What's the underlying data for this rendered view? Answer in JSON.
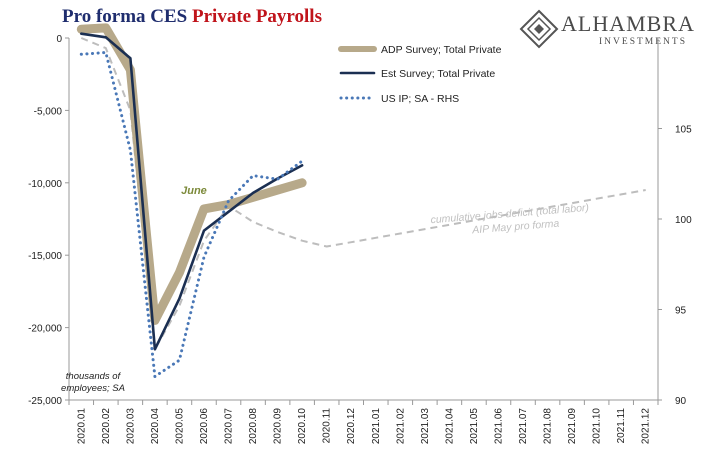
{
  "header": {
    "title_part1": "Pro forma CES ",
    "title_part2": "Private Payrolls"
  },
  "logo": {
    "name": "ALHAMBRA",
    "sub": "INVESTMENTS"
  },
  "chart_data": {
    "type": "line",
    "categories": [
      "2020.01",
      "2020.02",
      "2020.03",
      "2020.04",
      "2020.05",
      "2020.06",
      "2020.07",
      "2020.08",
      "2020.09",
      "2020.10",
      "2020.11",
      "2020.12",
      "2021.01",
      "2021.02",
      "2021.03",
      "2021.04",
      "2021.05",
      "2021.06",
      "2021.07",
      "2021.08",
      "2021.09",
      "2021.10",
      "2021.11",
      "2021.12"
    ],
    "ylim_left": [
      -25000,
      0
    ],
    "yticks_left": [
      0,
      -5000,
      -10000,
      -15000,
      -20000,
      -25000
    ],
    "ytick_labels_left": [
      "0",
      "-5,000",
      "-10,000",
      "-15,000",
      "-20,000",
      "-25,000"
    ],
    "ylim_right": [
      90,
      110
    ],
    "yticks_right": [
      90,
      95,
      100,
      105
    ],
    "ytick_labels_right": [
      "90",
      "95",
      "100",
      "105"
    ],
    "ylabel_left": "thousands of employees; SA",
    "legend_position": "top-right",
    "series": [
      {
        "name": "ADP Survey; Total Private",
        "axis": "left",
        "color": "#b7a98a",
        "x": [
          0,
          1,
          2,
          3,
          4,
          5,
          6,
          7,
          8,
          9
        ],
        "values": [
          600,
          700,
          -2200,
          -19500,
          -16200,
          -11800,
          -11500,
          -11000,
          -10500,
          -10000
        ]
      },
      {
        "name": "Est Survey; Total Private",
        "axis": "left",
        "color": "#1b2f52",
        "x": [
          0,
          1,
          2,
          3,
          4,
          5,
          6,
          7,
          8,
          9
        ],
        "values": [
          300,
          50,
          -1400,
          -21500,
          -18000,
          -13300,
          -12000,
          -10700,
          -9700,
          -8800
        ]
      },
      {
        "name": "US IP; SA - RHS",
        "axis": "right",
        "color": "#4a78b7",
        "x": [
          0,
          1,
          2,
          3,
          4,
          5,
          6,
          7,
          8,
          9
        ],
        "values": [
          109.1,
          109.2,
          103.8,
          91.3,
          92.2,
          97.9,
          101.0,
          102.4,
          102.2,
          103.2
        ]
      },
      {
        "name": "",
        "axis": "left",
        "color": "#bdbdbd",
        "dashed": true,
        "x": [
          0,
          1,
          2,
          3,
          4,
          5,
          6,
          7,
          8,
          9,
          10,
          11,
          12,
          13,
          14,
          15,
          16,
          17,
          18,
          19,
          20,
          21,
          22,
          23
        ],
        "values": [
          0,
          -700,
          -5000,
          -21500,
          -18500,
          -14000,
          -11600,
          -12700,
          -13400,
          -14000,
          -14400,
          -14100,
          -13800,
          -13500,
          -13200,
          -12900,
          -12600,
          -12300,
          -12000,
          -11700,
          -11400,
          -11100,
          -10800,
          -10500
        ]
      }
    ],
    "annotations": [
      {
        "text": "June",
        "color": "#7c8a3a"
      },
      {
        "text": "cumulative jobs deficit (total labor)",
        "color": "#c0c0c0"
      },
      {
        "text": "AIP May pro forma",
        "color": "#c0c0c0"
      }
    ]
  }
}
